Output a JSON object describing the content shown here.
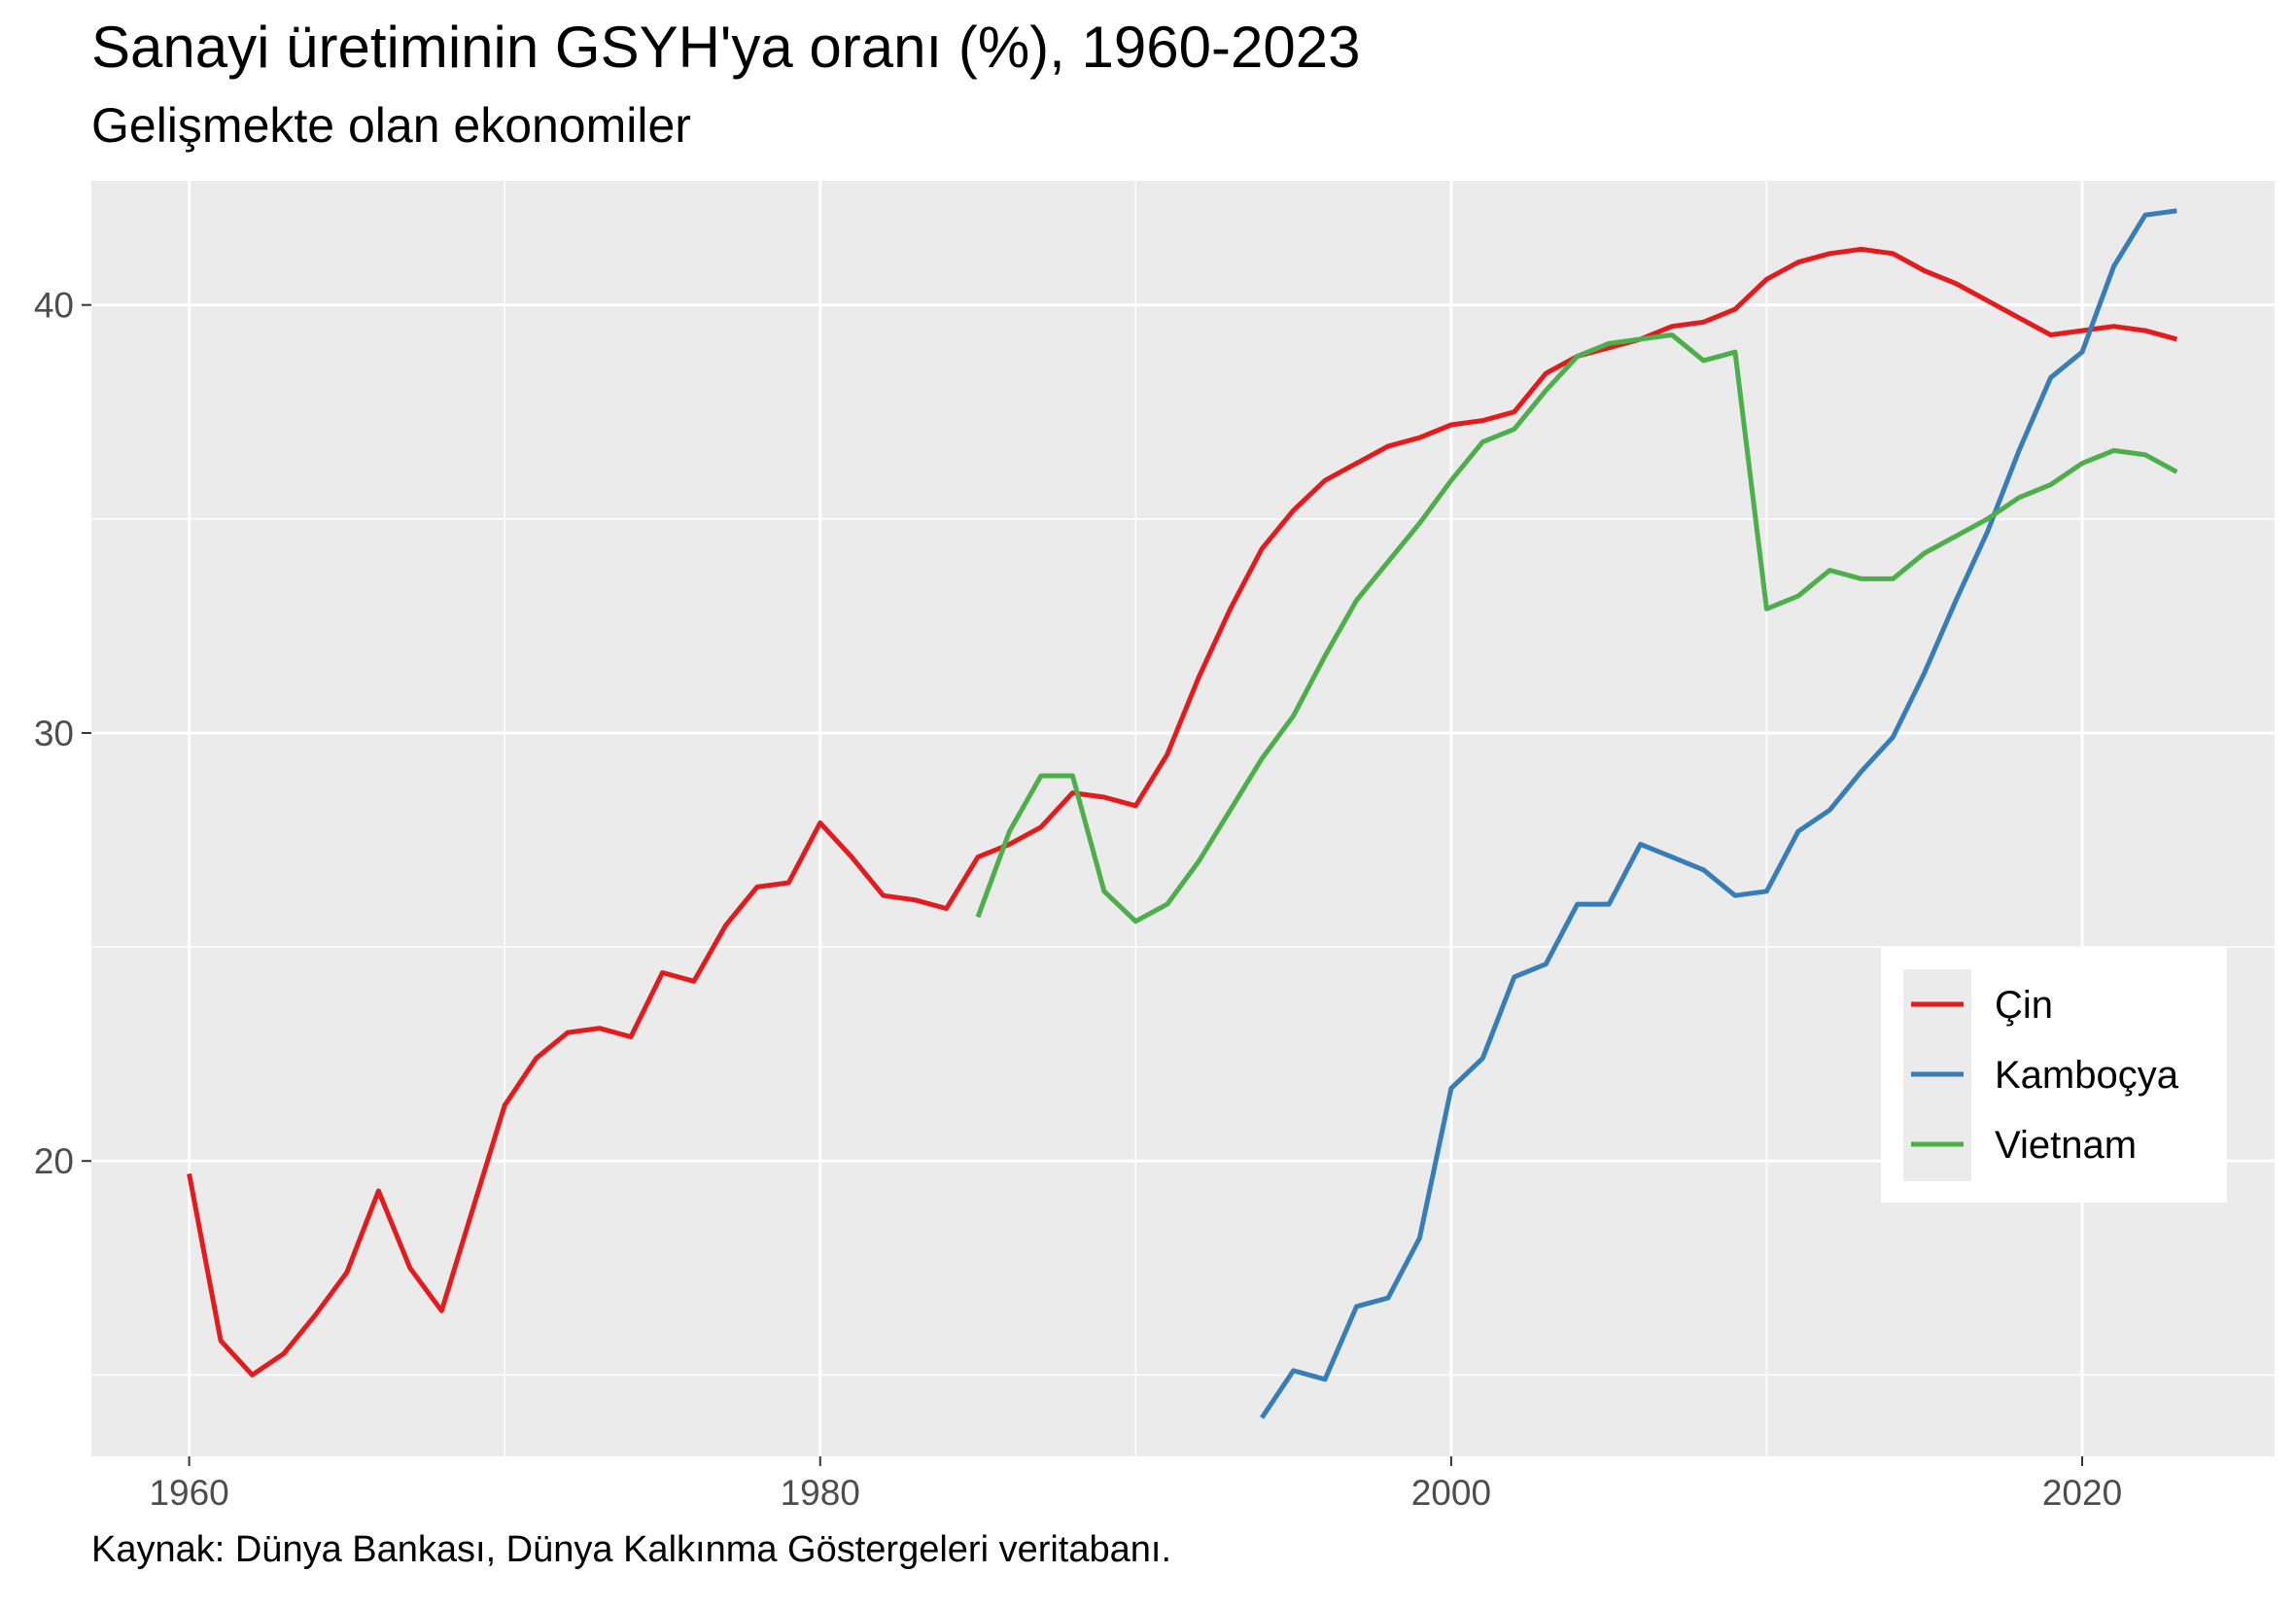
{
  "title": "Sanayi üretiminin GSYH'ya oranı (%), 1960-2023",
  "subtitle": "Gelişmekte olan ekonomiler",
  "caption": "Kaynak: Dünya Bankası, Dünya Kalkınma Göstergeleri veritabanı.",
  "chart_data": {
    "type": "line",
    "title": "Sanayi üretiminin GSYH'ya oranı (%), 1960-2023",
    "subtitle": "Gelişmekte olan ekonomiler",
    "xlabel": "",
    "ylabel": "",
    "xlim": [
      1956.9,
      2026.1
    ],
    "ylim": [
      13.1,
      42.9
    ],
    "x_ticks": [
      1960,
      1980,
      2000,
      2020
    ],
    "y_ticks": [
      20,
      30,
      40
    ],
    "grid": true,
    "legend_position": "right",
    "series": [
      {
        "name": "Çin",
        "color": "#e41a1c",
        "x": [
          1960,
          1961,
          1962,
          1963,
          1964,
          1965,
          1966,
          1967,
          1968,
          1969,
          1970,
          1971,
          1972,
          1973,
          1974,
          1975,
          1976,
          1977,
          1978,
          1979,
          1980,
          1981,
          1982,
          1983,
          1984,
          1985,
          1986,
          1987,
          1988,
          1989,
          1990,
          1991,
          1992,
          1993,
          1994,
          1995,
          1996,
          1997,
          1998,
          1999,
          2000,
          2001,
          2002,
          2003,
          2004,
          2005,
          2006,
          2007,
          2008,
          2009,
          2010,
          2011,
          2012,
          2013,
          2014,
          2015,
          2016,
          2017,
          2018,
          2019,
          2020,
          2021,
          2022,
          2023
        ],
        "y": [
          19.7,
          15.8,
          15.0,
          15.5,
          16.4,
          17.4,
          19.3,
          17.5,
          16.5,
          18.9,
          21.3,
          22.4,
          23.0,
          23.1,
          22.9,
          24.4,
          24.2,
          25.5,
          26.4,
          26.5,
          27.9,
          27.1,
          26.2,
          26.1,
          25.9,
          27.1,
          27.4,
          27.8,
          28.6,
          28.5,
          28.3,
          29.5,
          31.3,
          32.9,
          34.3,
          35.2,
          35.9,
          36.3,
          36.7,
          36.9,
          37.2,
          37.3,
          37.5,
          38.4,
          38.8,
          39.0,
          39.2,
          39.5,
          39.6,
          39.9,
          40.6,
          41.0,
          41.2,
          41.3,
          41.2,
          40.8,
          40.5,
          40.1,
          39.7,
          39.3,
          39.4,
          39.5,
          39.4,
          39.2
        ]
      },
      {
        "name": "Kamboçya",
        "color": "#377eb8",
        "x": [
          1994,
          1995,
          1996,
          1997,
          1998,
          1999,
          2000,
          2001,
          2002,
          2003,
          2004,
          2005,
          2006,
          2007,
          2008,
          2009,
          2010,
          2011,
          2012,
          2013,
          2014,
          2015,
          2016,
          2017,
          2018,
          2019,
          2020,
          2021,
          2022,
          2023
        ],
        "y": [
          14.0,
          15.1,
          14.9,
          16.6,
          16.8,
          18.2,
          21.7,
          22.4,
          24.3,
          24.6,
          26.0,
          26.0,
          27.4,
          27.1,
          26.8,
          26.2,
          26.3,
          27.7,
          28.2,
          29.1,
          29.9,
          31.4,
          33.1,
          34.7,
          36.6,
          38.3,
          38.9,
          40.9,
          42.1,
          42.2
        ]
      },
      {
        "name": "Vietnam",
        "color": "#4daf4a",
        "x": [
          1985,
          1986,
          1987,
          1988,
          1989,
          1990,
          1991,
          1992,
          1993,
          1994,
          1995,
          1996,
          1997,
          1998,
          1999,
          2000,
          2001,
          2002,
          2003,
          2004,
          2005,
          2006,
          2007,
          2008,
          2009,
          2010,
          2011,
          2012,
          2013,
          2014,
          2015,
          2016,
          2017,
          2018,
          2019,
          2020,
          2021,
          2022,
          2023
        ],
        "y": [
          25.7,
          27.7,
          29.0,
          29.0,
          26.3,
          25.6,
          26.0,
          27.0,
          28.2,
          29.4,
          30.4,
          31.8,
          33.1,
          34.0,
          34.9,
          35.9,
          36.8,
          37.1,
          38.0,
          38.8,
          39.1,
          39.2,
          39.3,
          38.7,
          38.9,
          32.9,
          33.2,
          33.8,
          33.6,
          33.6,
          34.2,
          34.6,
          35.0,
          35.5,
          35.8,
          36.3,
          36.6,
          36.5,
          36.1
        ]
      }
    ]
  }
}
